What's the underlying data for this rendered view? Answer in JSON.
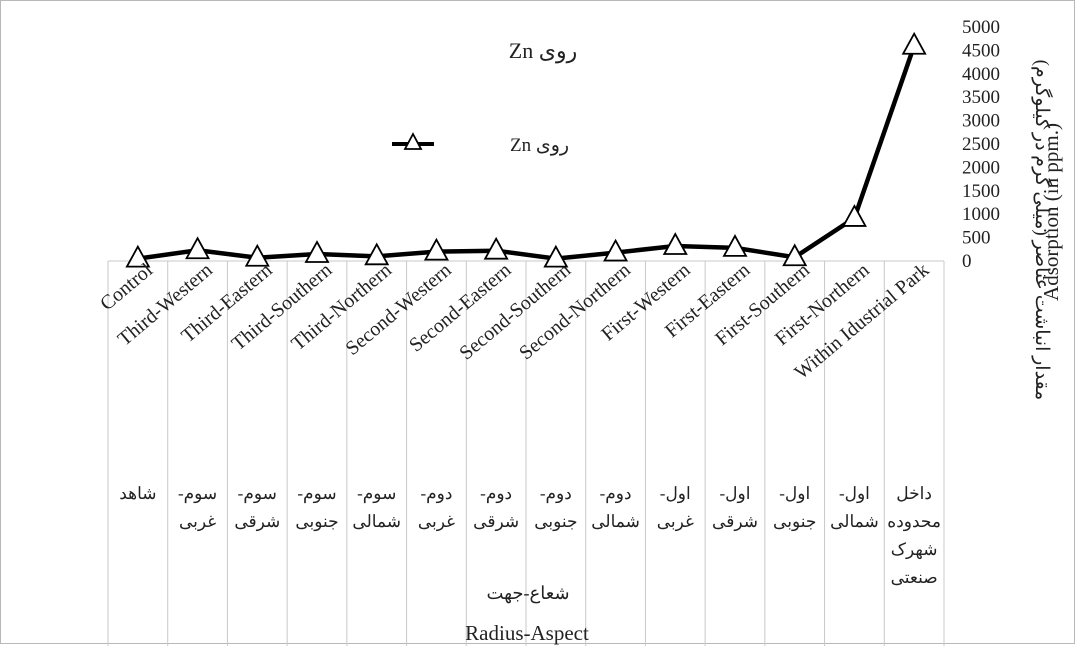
{
  "chart_data": {
    "type": "line",
    "title": "روی Zn",
    "legend": {
      "entries": [
        "روی Zn"
      ],
      "placement": "top-left"
    },
    "categories_en": [
      "Control",
      "Third-Western",
      "Third-Eastern",
      "Third-Southern",
      "Third-Northern",
      "Second-Western",
      "Second-Eastern",
      "Second-Southern",
      "Second-Northern",
      "First-Western",
      "First-Eastern",
      "First-Southern",
      "First-Northern",
      "Within Idustrial Park"
    ],
    "categories_fa": [
      [
        "شاهد"
      ],
      [
        "سوم-",
        "غربی"
      ],
      [
        "سوم-",
        "شرقی"
      ],
      [
        "سوم-",
        "جنوبی"
      ],
      [
        "سوم-",
        "شمالی"
      ],
      [
        "دوم-",
        "غربی"
      ],
      [
        "دوم-",
        "شرقی"
      ],
      [
        "دوم-",
        "جنوبی"
      ],
      [
        "دوم-",
        "شمالی"
      ],
      [
        "اول-",
        "غربی"
      ],
      [
        "اول-",
        "شرقی"
      ],
      [
        "اول-",
        "جنوبی"
      ],
      [
        "اول-",
        "شمالی"
      ],
      [
        "داخل",
        "محدوده",
        "شهرک",
        "صنعتی"
      ]
    ],
    "series": [
      {
        "name": "روی Zn",
        "values": [
          50,
          230,
          70,
          150,
          100,
          200,
          220,
          50,
          180,
          320,
          280,
          80,
          920,
          4600
        ],
        "marker": "triangle",
        "color": "#000000"
      }
    ],
    "ylim": [
      0,
      5000
    ],
    "yticks": [
      0,
      500,
      1000,
      1500,
      2000,
      2500,
      3000,
      3500,
      4000,
      4500,
      5000
    ],
    "ylabel_fa": "مقدار انباشت عناصر (میلی گرم در کیلوگرم)",
    "ylabel_en": "Adsorption (in ppm.)",
    "xlabel_fa": "شعاع-جهت",
    "xlabel_en": "Radius-Aspect",
    "grid": false
  }
}
